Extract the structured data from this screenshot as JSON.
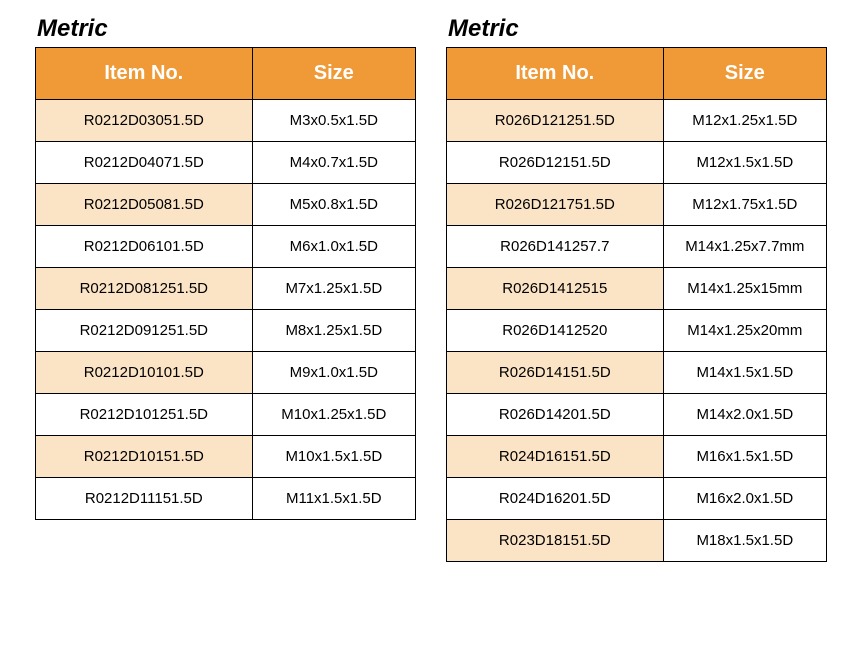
{
  "tables": [
    {
      "title": "Metric",
      "columns": [
        "Item No.",
        "Size"
      ],
      "rows": [
        {
          "item": "R0212D03051.5D",
          "size": "M3x0.5x1.5D"
        },
        {
          "item": "R0212D04071.5D",
          "size": "M4x0.7x1.5D"
        },
        {
          "item": "R0212D05081.5D",
          "size": "M5x0.8x1.5D"
        },
        {
          "item": "R0212D06101.5D",
          "size": "M6x1.0x1.5D"
        },
        {
          "item": "R0212D081251.5D",
          "size": "M7x1.25x1.5D"
        },
        {
          "item": "R0212D091251.5D",
          "size": "M8x1.25x1.5D"
        },
        {
          "item": "R0212D10101.5D",
          "size": "M9x1.0x1.5D"
        },
        {
          "item": "R0212D101251.5D",
          "size": "M10x1.25x1.5D"
        },
        {
          "item": "R0212D10151.5D",
          "size": "M10x1.5x1.5D"
        },
        {
          "item": "R0212D11151.5D",
          "size": "M11x1.5x1.5D"
        }
      ]
    },
    {
      "title": "Metric",
      "columns": [
        "Item No.",
        "Size"
      ],
      "rows": [
        {
          "item": "R026D121251.5D",
          "size": "M12x1.25x1.5D"
        },
        {
          "item": "R026D12151.5D",
          "size": "M12x1.5x1.5D"
        },
        {
          "item": "R026D121751.5D",
          "size": "M12x1.75x1.5D"
        },
        {
          "item": "R026D141257.7",
          "size": "M14x1.25x7.7mm"
        },
        {
          "item": "R026D1412515",
          "size": "M14x1.25x15mm"
        },
        {
          "item": "R026D1412520",
          "size": "M14x1.25x20mm"
        },
        {
          "item": "R026D14151.5D",
          "size": "M14x1.5x1.5D"
        },
        {
          "item": "R026D14201.5D",
          "size": "M14x2.0x1.5D"
        },
        {
          "item": "R024D16151.5D",
          "size": "M16x1.5x1.5D"
        },
        {
          "item": "R024D16201.5D",
          "size": "M16x2.0x1.5D"
        },
        {
          "item": "R023D18151.5D",
          "size": "M18x1.5x1.5D"
        }
      ]
    }
  ],
  "styling": {
    "header_bg": "#f09a37",
    "header_text_color": "#ffffff",
    "stripe_bg": "#fbe3c5",
    "border_color": "#000000",
    "title_fontsize": 24,
    "header_fontsize": 20,
    "cell_fontsize": 15
  }
}
